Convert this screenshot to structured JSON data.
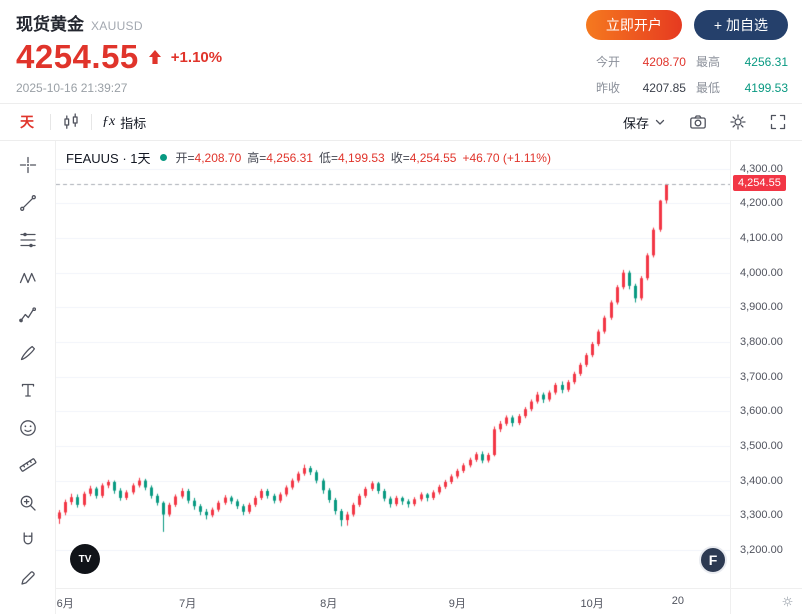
{
  "header": {
    "title": "现货黄金",
    "symbol": "XAUUSD",
    "price": "4254.55",
    "change_percent": "+1.10%",
    "timestamp": "2025-10-16 21:39:27",
    "buttons": {
      "open_account": "立即开户",
      "add_watchlist": "+ 加自选"
    },
    "stats": {
      "open_label": "今开",
      "open_value": "4208.70",
      "high_label": "最高",
      "high_value": "4256.31",
      "prev_close_label": "昨收",
      "prev_close_value": "4207.85",
      "low_label": "最低",
      "low_value": "4199.53"
    }
  },
  "toolbar": {
    "interval": "天",
    "fx": "ƒx",
    "indicator": "指标",
    "save": "保存"
  },
  "legend": {
    "series": "FEAUUS · 1天",
    "open_label": "开=",
    "open": "4,208.70",
    "high_label": "高=",
    "high": "4,256.31",
    "low_label": "低=",
    "low": "4,199.53",
    "close_label": "收=",
    "close": "4,254.55",
    "change": "+46.70 (+1.11%)"
  },
  "logos": {
    "tv": "TV",
    "f": "F"
  },
  "colors": {
    "up": "#f23645",
    "down": "#089981",
    "price_red": "#e0342b",
    "green": "#089981",
    "accent_orange": "#ed5a1f",
    "navy_button": "#25406b"
  },
  "icons": [
    "crosshair",
    "trend-line",
    "fib-retracement",
    "xabcd-pattern",
    "forecast",
    "brush",
    "text-tool",
    "emoji",
    "ruler",
    "zoom-in",
    "magnet",
    "edit-pencil",
    "candles",
    "indicator-fx",
    "chevron-down",
    "camera",
    "settings-gear",
    "fullscreen",
    "up-arrow",
    "status-dot",
    "tv-logo",
    "f-logo",
    "axis-gear"
  ],
  "chart_data": {
    "type": "candlestick",
    "title": "FEAUUS 1天 现货黄金 XAUUSD 日K线",
    "y_min": 3090,
    "y_max": 4380,
    "gridlines": [
      3200,
      3300,
      3400,
      3500,
      3600,
      3700,
      3800,
      3900,
      4000,
      4100,
      4200,
      4300
    ],
    "y_ticks": [
      {
        "value": 4300,
        "label": "4,300.00"
      },
      {
        "value": 4200,
        "label": "4,200.00"
      },
      {
        "value": 4100,
        "label": "4,100.00"
      },
      {
        "value": 4000,
        "label": "4,000.00"
      },
      {
        "value": 3900,
        "label": "3,900.00"
      },
      {
        "value": 3800,
        "label": "3,800.00"
      },
      {
        "value": 3700,
        "label": "3,700.00"
      },
      {
        "value": 3600,
        "label": "3,600.00"
      },
      {
        "value": 3500,
        "label": "3,500.00"
      },
      {
        "value": 3400,
        "label": "3,400.00"
      },
      {
        "value": 3300,
        "label": "3,300.00"
      },
      {
        "value": 3200,
        "label": "3,200.00"
      }
    ],
    "x_labels": [
      {
        "index": 1,
        "label": "6月"
      },
      {
        "index": 21,
        "label": "7月"
      },
      {
        "index": 44,
        "label": "8月"
      },
      {
        "index": 65,
        "label": "9月"
      },
      {
        "index": 87,
        "label": "10月"
      },
      {
        "index": 101,
        "label": "20"
      }
    ],
    "total_slots": 110,
    "last_price": 4254.55,
    "last_price_label": "4,254.55",
    "up_color": "#f23645",
    "down_color": "#089981",
    "candles": [
      [
        3290,
        3315,
        3275,
        3308
      ],
      [
        3308,
        3345,
        3300,
        3338
      ],
      [
        3338,
        3362,
        3330,
        3352
      ],
      [
        3352,
        3360,
        3322,
        3330
      ],
      [
        3330,
        3368,
        3325,
        3362
      ],
      [
        3362,
        3385,
        3355,
        3377
      ],
      [
        3377,
        3382,
        3348,
        3356
      ],
      [
        3356,
        3392,
        3350,
        3386
      ],
      [
        3386,
        3402,
        3378,
        3396
      ],
      [
        3396,
        3400,
        3362,
        3371
      ],
      [
        3371,
        3378,
        3342,
        3350
      ],
      [
        3350,
        3372,
        3344,
        3366
      ],
      [
        3366,
        3392,
        3360,
        3386
      ],
      [
        3386,
        3408,
        3380,
        3400
      ],
      [
        3400,
        3405,
        3372,
        3380
      ],
      [
        3380,
        3386,
        3348,
        3356
      ],
      [
        3356,
        3362,
        3328,
        3336
      ],
      [
        3336,
        3340,
        3252,
        3302
      ],
      [
        3302,
        3336,
        3296,
        3330
      ],
      [
        3330,
        3360,
        3324,
        3354
      ],
      [
        3354,
        3378,
        3348,
        3370
      ],
      [
        3370,
        3376,
        3334,
        3342
      ],
      [
        3342,
        3350,
        3316,
        3326
      ],
      [
        3326,
        3332,
        3300,
        3310
      ],
      [
        3310,
        3318,
        3288,
        3300
      ],
      [
        3300,
        3322,
        3294,
        3316
      ],
      [
        3316,
        3342,
        3310,
        3336
      ],
      [
        3336,
        3358,
        3330,
        3351
      ],
      [
        3351,
        3356,
        3332,
        3340
      ],
      [
        3340,
        3346,
        3318,
        3326
      ],
      [
        3326,
        3332,
        3300,
        3310
      ],
      [
        3310,
        3336,
        3304,
        3330
      ],
      [
        3330,
        3356,
        3324,
        3350
      ],
      [
        3350,
        3376,
        3344,
        3370
      ],
      [
        3370,
        3376,
        3348,
        3356
      ],
      [
        3356,
        3362,
        3334,
        3342
      ],
      [
        3342,
        3366,
        3336,
        3360
      ],
      [
        3360,
        3386,
        3354,
        3380
      ],
      [
        3380,
        3406,
        3374,
        3400
      ],
      [
        3400,
        3426,
        3394,
        3420
      ],
      [
        3420,
        3446,
        3414,
        3436
      ],
      [
        3436,
        3442,
        3416,
        3424
      ],
      [
        3424,
        3430,
        3392,
        3400
      ],
      [
        3400,
        3406,
        3362,
        3372
      ],
      [
        3372,
        3378,
        3336,
        3344
      ],
      [
        3344,
        3350,
        3302,
        3312
      ],
      [
        3312,
        3318,
        3268,
        3286
      ],
      [
        3286,
        3310,
        3270,
        3302
      ],
      [
        3302,
        3336,
        3296,
        3330
      ],
      [
        3330,
        3362,
        3324,
        3356
      ],
      [
        3356,
        3382,
        3350,
        3376
      ],
      [
        3376,
        3398,
        3370,
        3392
      ],
      [
        3392,
        3396,
        3362,
        3370
      ],
      [
        3370,
        3376,
        3340,
        3348
      ],
      [
        3348,
        3354,
        3322,
        3332
      ],
      [
        3332,
        3356,
        3326,
        3350
      ],
      [
        3350,
        3354,
        3330,
        3340
      ],
      [
        3340,
        3346,
        3322,
        3332
      ],
      [
        3332,
        3352,
        3326,
        3346
      ],
      [
        3346,
        3366,
        3340,
        3360
      ],
      [
        3360,
        3364,
        3340,
        3350
      ],
      [
        3350,
        3372,
        3344,
        3366
      ],
      [
        3366,
        3388,
        3360,
        3382
      ],
      [
        3382,
        3402,
        3376,
        3396
      ],
      [
        3396,
        3418,
        3390,
        3412
      ],
      [
        3412,
        3434,
        3406,
        3428
      ],
      [
        3428,
        3450,
        3422,
        3444
      ],
      [
        3444,
        3466,
        3438,
        3460
      ],
      [
        3460,
        3482,
        3454,
        3476
      ],
      [
        3476,
        3484,
        3450,
        3458
      ],
      [
        3458,
        3480,
        3452,
        3474
      ],
      [
        3474,
        3556,
        3470,
        3548
      ],
      [
        3548,
        3572,
        3540,
        3564
      ],
      [
        3564,
        3588,
        3558,
        3582
      ],
      [
        3582,
        3588,
        3556,
        3566
      ],
      [
        3566,
        3592,
        3560,
        3586
      ],
      [
        3586,
        3612,
        3580,
        3606
      ],
      [
        3606,
        3634,
        3600,
        3628
      ],
      [
        3628,
        3656,
        3622,
        3648
      ],
      [
        3648,
        3654,
        3624,
        3634
      ],
      [
        3634,
        3660,
        3628,
        3654
      ],
      [
        3654,
        3682,
        3648,
        3676
      ],
      [
        3676,
        3686,
        3652,
        3662
      ],
      [
        3662,
        3690,
        3656,
        3684
      ],
      [
        3684,
        3714,
        3678,
        3708
      ],
      [
        3708,
        3740,
        3702,
        3734
      ],
      [
        3734,
        3768,
        3728,
        3762
      ],
      [
        3762,
        3800,
        3756,
        3794
      ],
      [
        3794,
        3836,
        3788,
        3830
      ],
      [
        3830,
        3876,
        3824,
        3870
      ],
      [
        3870,
        3920,
        3864,
        3914
      ],
      [
        3914,
        3964,
        3908,
        3958
      ],
      [
        3958,
        4008,
        3952,
        4000
      ],
      [
        4000,
        4006,
        3952,
        3962
      ],
      [
        3962,
        3968,
        3914,
        3926
      ],
      [
        3926,
        3990,
        3920,
        3984
      ],
      [
        3984,
        4056,
        3978,
        4050
      ],
      [
        4050,
        4130,
        4044,
        4124
      ],
      [
        4124,
        4210,
        4118,
        4207.85
      ],
      [
        4208.7,
        4256.31,
        4199.53,
        4254.55
      ]
    ]
  }
}
